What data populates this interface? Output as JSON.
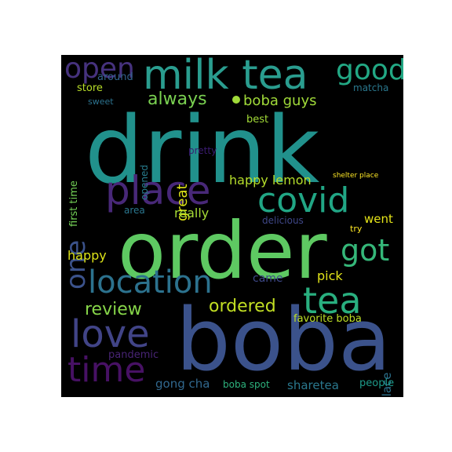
{
  "words": [
    {
      "key": "drink",
      "text": "drink",
      "color": "#21918c"
    },
    {
      "key": "order",
      "text": "order",
      "color": "#5ec962"
    },
    {
      "key": "boba",
      "text": "boba",
      "color": "#3b528b"
    },
    {
      "key": "milk_tea",
      "text": "milk tea",
      "color": "#2a9d8f"
    },
    {
      "key": "place",
      "text": "place",
      "color": "#482878"
    },
    {
      "key": "covid",
      "text": "covid",
      "color": "#21a685"
    },
    {
      "key": "location",
      "text": "location",
      "color": "#2c728e"
    },
    {
      "key": "tea",
      "text": "tea",
      "color": "#29af7f"
    },
    {
      "key": "love",
      "text": "love",
      "color": "#414487"
    },
    {
      "key": "time",
      "text": "time",
      "color": "#471164"
    },
    {
      "key": "open",
      "text": "open",
      "color": "#46327e"
    },
    {
      "key": "good",
      "text": "good",
      "color": "#22a884"
    },
    {
      "key": "one",
      "text": "one",
      "color": "#3b528b"
    },
    {
      "key": "got",
      "text": "got",
      "color": "#35b779"
    },
    {
      "key": "always",
      "text": "always",
      "color": "#7ad151"
    },
    {
      "key": "boba_guys",
      "text": "boba guys",
      "color": "#a0da39"
    },
    {
      "key": "review",
      "text": "review",
      "color": "#86d549"
    },
    {
      "key": "ordered",
      "text": "ordered",
      "color": "#c2df23"
    },
    {
      "key": "great",
      "text": "great",
      "color": "#dde318"
    },
    {
      "key": "happy_lemon",
      "text": "happy lemon",
      "color": "#b5de2b"
    },
    {
      "key": "really",
      "text": "really",
      "color": "#a5db36"
    },
    {
      "key": "went",
      "text": "went",
      "color": "#e5e419"
    },
    {
      "key": "happy",
      "text": "happy",
      "color": "#dde318"
    },
    {
      "key": "pick",
      "text": "pick",
      "color": "#e2e418"
    },
    {
      "key": "came",
      "text": "came",
      "color": "#3e4989"
    },
    {
      "key": "boba_place",
      "text": "boba place",
      "color": "#2c728e"
    },
    {
      "key": "gong_cha",
      "text": "gong cha",
      "color": "#31688e"
    },
    {
      "key": "sharetea",
      "text": "sharetea",
      "color": "#2a788e"
    },
    {
      "key": "pandemic",
      "text": "pandemic",
      "color": "#482475"
    },
    {
      "key": "favorite_boba",
      "text": "favorite boba",
      "color": "#bddf26"
    },
    {
      "key": "boba_spot",
      "text": "boba spot",
      "color": "#2db27d"
    },
    {
      "key": "people",
      "text": "people",
      "color": "#1e9b8a"
    },
    {
      "key": "first_time",
      "text": "first time",
      "color": "#73d056"
    },
    {
      "key": "store",
      "text": "store",
      "color": "#b8de29"
    },
    {
      "key": "around",
      "text": "around",
      "color": "#33638d"
    },
    {
      "key": "sweet",
      "text": "sweet",
      "color": "#2c728e"
    },
    {
      "key": "matcha",
      "text": "matcha",
      "color": "#2a788e"
    },
    {
      "key": "best",
      "text": "best",
      "color": "#a2da37"
    },
    {
      "key": "opened",
      "text": "opened",
      "color": "#287d8e"
    },
    {
      "key": "pretty",
      "text": "pretty",
      "color": "#3b1c72"
    },
    {
      "key": "area",
      "text": "area",
      "color": "#2a768e"
    },
    {
      "key": "delicious",
      "text": "delicious",
      "color": "#3f4788"
    },
    {
      "key": "try",
      "text": "try",
      "color": "#fde725"
    },
    {
      "key": "shelter_place",
      "text": "shelter place",
      "color": "#fde725"
    }
  ]
}
